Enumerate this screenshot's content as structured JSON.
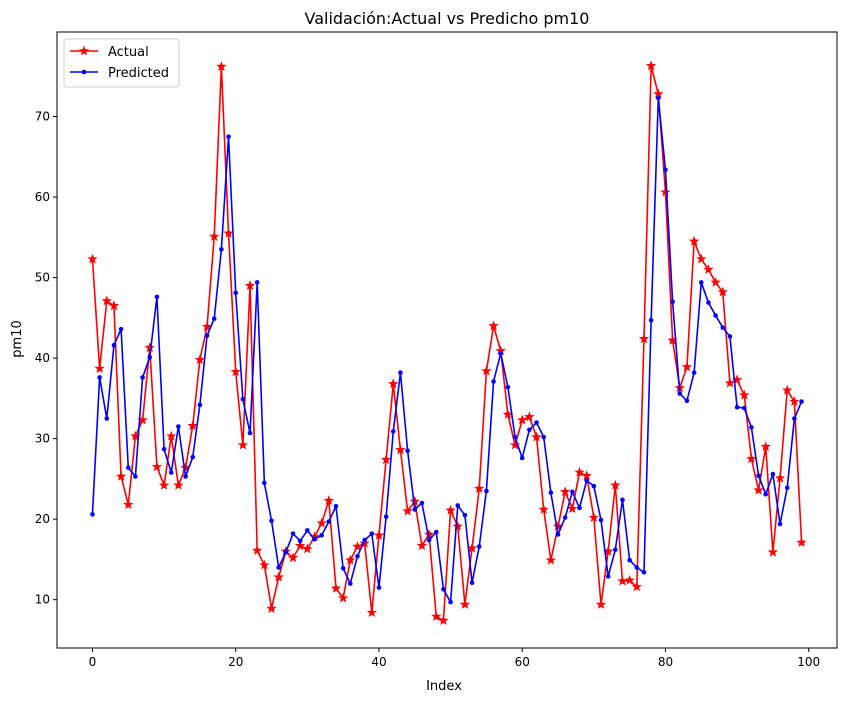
{
  "chart_data": {
    "type": "line",
    "title": "Validación:Actual vs Predicho pm10",
    "xlabel": "Index",
    "ylabel": "pm10",
    "xlim": [
      -4.95,
      103.95
    ],
    "ylim": [
      4.0,
      80.5
    ],
    "xticks": [
      0,
      20,
      40,
      60,
      80,
      100
    ],
    "yticks": [
      10,
      20,
      30,
      40,
      50,
      60,
      70
    ],
    "grid": false,
    "legend_position": "top-left",
    "x": [
      0,
      1,
      2,
      3,
      4,
      5,
      6,
      7,
      8,
      9,
      10,
      11,
      12,
      13,
      14,
      15,
      16,
      17,
      18,
      19,
      20,
      21,
      22,
      23,
      24,
      25,
      26,
      27,
      28,
      29,
      30,
      31,
      32,
      33,
      34,
      35,
      36,
      37,
      38,
      39,
      40,
      41,
      42,
      43,
      44,
      45,
      46,
      47,
      48,
      49,
      50,
      51,
      52,
      53,
      54,
      55,
      56,
      57,
      58,
      59,
      60,
      61,
      62,
      63,
      64,
      65,
      66,
      67,
      68,
      69,
      70,
      71,
      72,
      73,
      74,
      75,
      76,
      77,
      78,
      79,
      80,
      81,
      82,
      83,
      84,
      85,
      86,
      87,
      88,
      89,
      90,
      91,
      92,
      93,
      94,
      95,
      96,
      97,
      98,
      99
    ],
    "series": [
      {
        "name": "Actual",
        "color": "#ff0000",
        "marker": "star",
        "values": [
          52.3,
          38.7,
          47.1,
          46.5,
          25.3,
          21.8,
          30.3,
          32.3,
          41.3,
          26.5,
          24.2,
          30.3,
          24.2,
          26.4,
          31.6,
          39.8,
          43.9,
          55.1,
          76.2,
          55.5,
          38.3,
          29.2,
          49.0,
          16.1,
          14.3,
          8.9,
          12.8,
          16.0,
          15.2,
          16.7,
          16.3,
          17.8,
          19.5,
          22.3,
          11.4,
          10.2,
          14.9,
          16.6,
          17.0,
          8.4,
          18.0,
          27.4,
          36.8,
          28.6,
          21.0,
          22.2,
          16.7,
          18.1,
          7.9,
          7.4,
          21.1,
          19.1,
          9.4,
          16.4,
          23.8,
          38.4,
          44.0,
          40.9,
          33.0,
          29.2,
          32.3,
          32.7,
          30.2,
          21.2,
          14.9,
          19.1,
          23.4,
          21.3,
          25.8,
          25.4,
          20.2,
          9.4,
          16.0,
          24.2,
          12.3,
          12.4,
          11.6,
          42.4,
          76.3,
          72.8,
          60.6,
          42.2,
          36.3,
          38.9,
          54.5,
          52.3,
          51.0,
          49.4,
          48.2,
          36.9,
          37.3,
          35.4,
          27.5,
          23.6,
          29.0,
          15.9,
          25.1,
          36.0,
          34.6,
          17.1
        ]
      },
      {
        "name": "Predicted",
        "color": "#0000ff",
        "marker": "dot",
        "values": [
          20.6,
          37.6,
          32.5,
          41.6,
          43.6,
          26.4,
          25.3,
          37.6,
          40.1,
          47.6,
          28.7,
          25.8,
          31.5,
          25.3,
          27.7,
          34.2,
          42.8,
          44.9,
          53.5,
          67.5,
          48.1,
          34.9,
          30.7,
          49.4,
          24.5,
          19.8,
          14.0,
          15.9,
          18.2,
          17.3,
          18.6,
          17.5,
          18.0,
          19.7,
          21.6,
          13.9,
          12.0,
          15.4,
          17.4,
          18.2,
          11.5,
          20.3,
          30.9,
          38.2,
          28.5,
          21.2,
          22.0,
          17.4,
          18.4,
          11.3,
          9.7,
          21.7,
          20.5,
          12.1,
          16.6,
          23.5,
          37.1,
          40.6,
          36.4,
          30.2,
          27.6,
          31.1,
          32.0,
          30.2,
          23.3,
          18.1,
          20.2,
          23.4,
          21.4,
          24.8,
          24.1,
          19.9,
          12.9,
          16.2,
          22.4,
          14.9,
          14.0,
          13.4,
          44.7,
          72.3,
          63.4,
          47.0,
          35.6,
          34.7,
          38.2,
          49.4,
          46.9,
          45.3,
          43.8,
          42.7,
          33.9,
          33.8,
          31.4,
          25.4,
          23.1,
          25.6,
          19.4,
          23.9,
          32.5,
          34.6
        ]
      }
    ]
  }
}
